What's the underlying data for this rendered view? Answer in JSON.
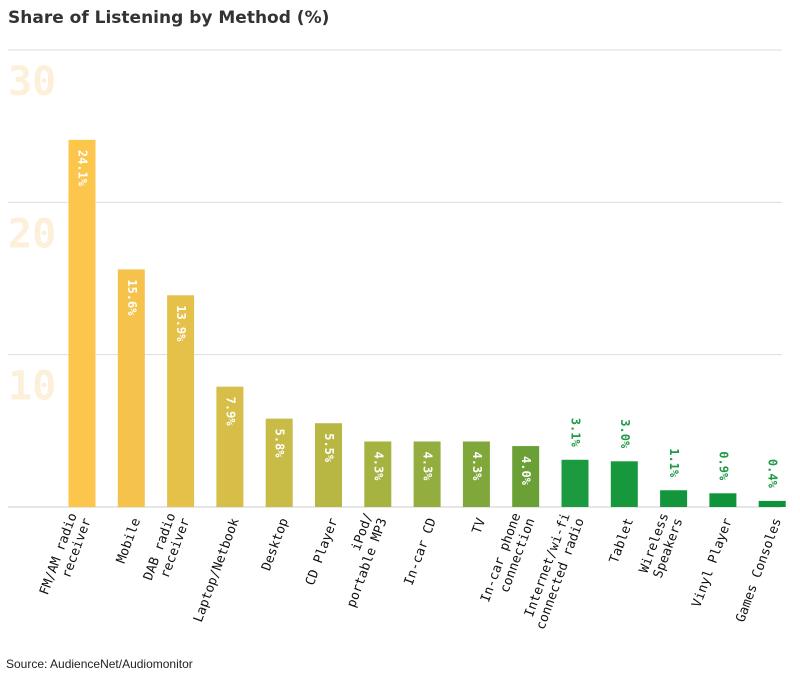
{
  "title": "Share of Listening by Method (%)",
  "source": "Source: AudienceNet/Audiomonitor",
  "colors": {
    "gradient": [
      "#fcc54c",
      "#f5c24b",
      "#e6c14a",
      "#d6be48",
      "#c8bb46",
      "#b8b744",
      "#a6b341",
      "#93ad3e",
      "#80a73a",
      "#6ba036",
      "#1c9a3f",
      "#17983d",
      "#13963b",
      "#10943a",
      "#0e9239"
    ],
    "grid": "#dddddd",
    "inside_label": "#ffffff",
    "outside_label": "#1f9a45"
  },
  "chart_data": {
    "type": "bar",
    "title": "Share of Listening by Method (%)",
    "categories": [
      [
        "FM/AM radio",
        "receiver"
      ],
      [
        "Mobile"
      ],
      [
        "DAB radio",
        "receiver"
      ],
      [
        "Laptop/Netbook"
      ],
      [
        "Desktop"
      ],
      [
        "CD Player"
      ],
      [
        "iPod/",
        "portable MP3"
      ],
      [
        "In-car CD"
      ],
      [
        "TV"
      ],
      [
        "In-car phone",
        "connection"
      ],
      [
        "Internet/wi-fi",
        "connected radio"
      ],
      [
        "Tablet"
      ],
      [
        "Wireless",
        "Speakers"
      ],
      [
        "Vinyl Player"
      ],
      [
        "Games Consoles"
      ]
    ],
    "values": [
      24.1,
      15.6,
      13.9,
      7.9,
      5.8,
      5.5,
      4.3,
      4.3,
      4.3,
      4.0,
      3.1,
      3.0,
      1.1,
      0.9,
      0.4
    ],
    "value_labels": [
      "24.1%",
      "15.6%",
      "13.9%",
      "7.9%",
      "5.8%",
      "5.5%",
      "4.3%",
      "4.3%",
      "4.3%",
      "4.0%",
      "3.1%",
      "3.0%",
      "1.1%",
      "0.9%",
      "0.4%"
    ],
    "label_inside": [
      true,
      true,
      true,
      true,
      true,
      true,
      true,
      true,
      true,
      true,
      false,
      false,
      false,
      false,
      false
    ],
    "yticks": [
      10,
      20,
      30
    ],
    "ylim": [
      0,
      30
    ],
    "grid": true,
    "xlabel": "",
    "ylabel": ""
  }
}
